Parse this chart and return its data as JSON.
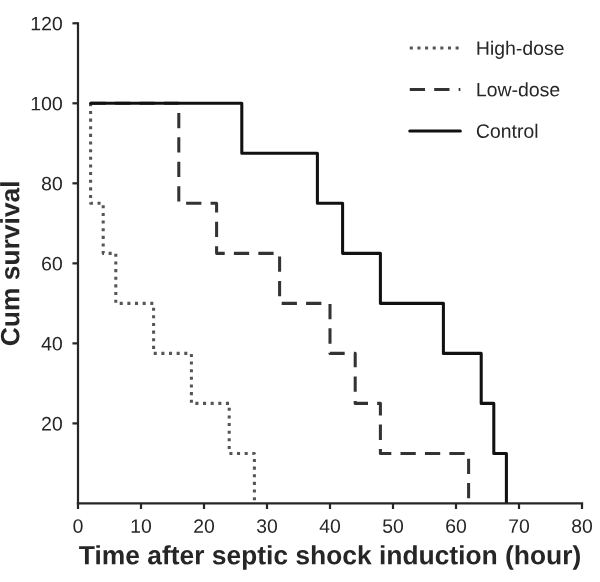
{
  "chart_data": {
    "type": "step",
    "xlabel": "Time after septic shock induction (hour)",
    "ylabel": "Cum survival",
    "series": [
      {
        "name": "High-dose",
        "color": "#555555",
        "line_style": "dotted",
        "x": [
          2,
          2,
          4,
          6,
          12,
          18,
          24,
          28
        ],
        "values": [
          100,
          75,
          62.5,
          50,
          37.5,
          25,
          12.5,
          0
        ]
      },
      {
        "name": "Low-dose",
        "color": "#333333",
        "line_style": "dashed",
        "x": [
          2,
          16,
          22,
          32,
          40,
          44,
          48,
          62
        ],
        "values": [
          100,
          75,
          62.5,
          50,
          37.5,
          25,
          12.5,
          0
        ]
      },
      {
        "name": "Control",
        "color": "#111111",
        "line_style": "solid",
        "x": [
          2,
          26,
          38,
          42,
          48,
          58,
          64,
          66,
          68
        ],
        "values": [
          100,
          87.5,
          75,
          62.5,
          50,
          37.5,
          25,
          12.5,
          0
        ]
      }
    ],
    "xlim": [
      0,
      80
    ],
    "xticks": [
      0,
      10,
      20,
      30,
      40,
      50,
      60,
      70,
      80
    ],
    "ylim": [
      0,
      120
    ],
    "yticks": [
      20,
      40,
      60,
      80,
      100,
      120
    ],
    "legend": "top right",
    "grid": false,
    "marker": "none"
  }
}
